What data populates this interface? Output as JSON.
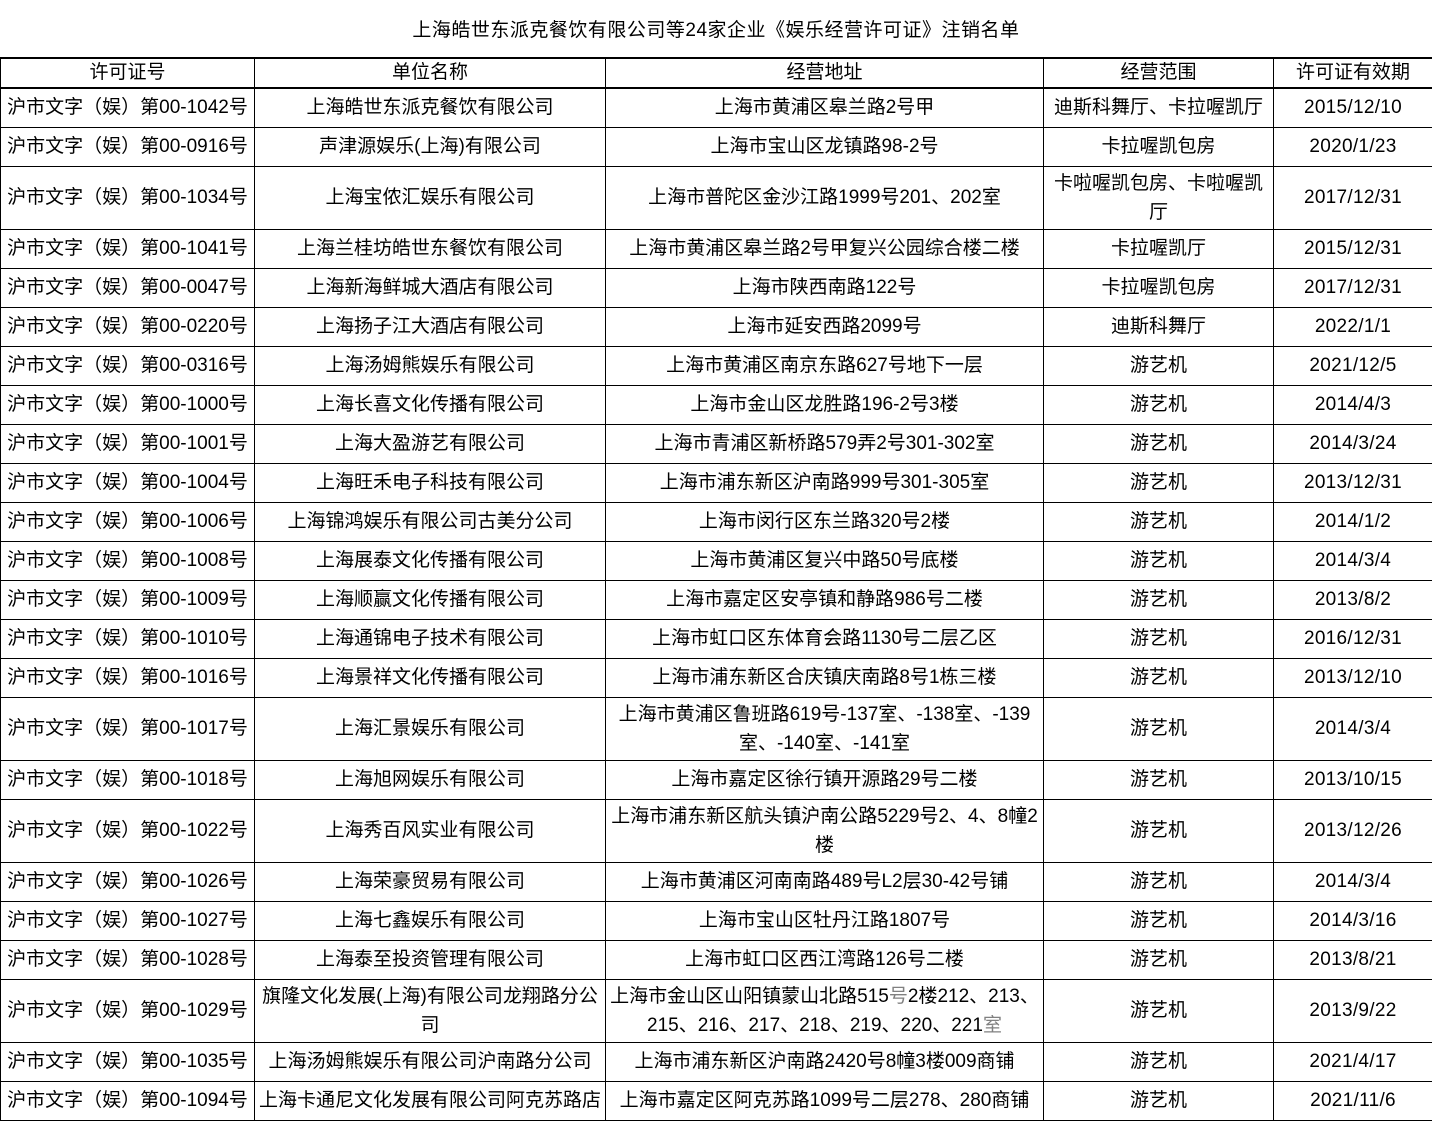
{
  "title": "上海皓世东派克餐饮有限公司等24家企业《娱乐经营许可证》注销名单",
  "colors": {
    "text": "#000000",
    "muted_segment": "#808080",
    "border": "#000000",
    "background": "#ffffff"
  },
  "table": {
    "headers": [
      "许可证号",
      "单位名称",
      "经营地址",
      "经营范围",
      "许可证有效期"
    ],
    "rows": [
      {
        "license": "沪市文字（娱）第00-1042号",
        "company": "上海皓世东派克餐饮有限公司",
        "address": "上海市黄浦区皋兰路2号甲",
        "scope": "迪斯科舞厅、卡拉喔凯厅",
        "expiry": "2015/12/10"
      },
      {
        "license": "沪市文字（娱）第00-0916号",
        "company": "声津源娱乐(上海)有限公司",
        "address": "上海市宝山区龙镇路98-2号",
        "scope": "卡拉喔凯包房",
        "expiry": "2020/1/23"
      },
      {
        "license": "沪市文字（娱）第00-1034号",
        "company": "上海宝侬汇娱乐有限公司",
        "address": "上海市普陀区金沙江路1999号201、202室",
        "scope": "卡啦喔凯包房、卡啦喔凯厅",
        "expiry": "2017/12/31"
      },
      {
        "license": "沪市文字（娱）第00-1041号",
        "company": "上海兰桂坊皓世东餐饮有限公司",
        "address": "上海市黄浦区皋兰路2号甲复兴公园综合楼二楼",
        "scope": "卡拉喔凯厅",
        "expiry": "2015/12/31"
      },
      {
        "license": "沪市文字（娱）第00-0047号",
        "company": "上海新海鲜城大酒店有限公司",
        "address": "上海市陕西南路122号",
        "scope": "卡拉喔凯包房",
        "expiry": "2017/12/31"
      },
      {
        "license": "沪市文字（娱）第00-0220号",
        "company": "上海扬子江大酒店有限公司",
        "address": "上海市延安西路2099号",
        "scope": "迪斯科舞厅",
        "expiry": "2022/1/1"
      },
      {
        "license": "沪市文字（娱）第00-0316号",
        "company": "上海汤姆熊娱乐有限公司",
        "address": "上海市黄浦区南京东路627号地下一层",
        "scope": "游艺机",
        "expiry": "2021/12/5"
      },
      {
        "license": "沪市文字（娱）第00-1000号",
        "company": "上海长喜文化传播有限公司",
        "address": "上海市金山区龙胜路196-2号3楼",
        "scope": "游艺机",
        "expiry": "2014/4/3"
      },
      {
        "license": "沪市文字（娱）第00-1001号",
        "company": "上海大盈游艺有限公司",
        "address": "上海市青浦区新桥路579弄2号301-302室",
        "scope": "游艺机",
        "expiry": "2014/3/24"
      },
      {
        "license": "沪市文字（娱）第00-1004号",
        "company": "上海旺禾电子科技有限公司",
        "address": "上海市浦东新区沪南路999号301-305室",
        "scope": "游艺机",
        "expiry": "2013/12/31"
      },
      {
        "license": "沪市文字（娱）第00-1006号",
        "company": "上海锦鸿娱乐有限公司古美分公司",
        "address": "上海市闵行区东兰路320号2楼",
        "scope": "游艺机",
        "expiry": "2014/1/2"
      },
      {
        "license": "沪市文字（娱）第00-1008号",
        "company": "上海展泰文化传播有限公司",
        "address": "上海市黄浦区复兴中路50号底楼",
        "scope": "游艺机",
        "expiry": "2014/3/4"
      },
      {
        "license": "沪市文字（娱）第00-1009号",
        "company": "上海顺赢文化传播有限公司",
        "address": "上海市嘉定区安亭镇和静路986号二楼",
        "scope": "游艺机",
        "expiry": "2013/8/2"
      },
      {
        "license": "沪市文字（娱）第00-1010号",
        "company": "上海通锦电子技术有限公司",
        "address": "上海市虹口区东体育会路1130号二层乙区",
        "scope": "游艺机",
        "expiry": "2016/12/31"
      },
      {
        "license": "沪市文字（娱）第00-1016号",
        "company": "上海景祥文化传播有限公司",
        "address": "上海市浦东新区合庆镇庆南路8号1栋三楼",
        "scope": "游艺机",
        "expiry": "2013/12/10"
      },
      {
        "license": "沪市文字（娱）第00-1017号",
        "company": "上海汇景娱乐有限公司",
        "address": "上海市黄浦区鲁班路619号-137室、-138室、-139室、-140室、-141室",
        "scope": "游艺机",
        "expiry": "2014/3/4"
      },
      {
        "license": "沪市文字（娱）第00-1018号",
        "company": "上海旭网娱乐有限公司",
        "address": "上海市嘉定区徐行镇开源路29号二楼",
        "scope": "游艺机",
        "expiry": "2013/10/15"
      },
      {
        "license": "沪市文字（娱）第00-1022号",
        "company": "上海秀百风实业有限公司",
        "address": "上海市浦东新区航头镇沪南公路5229号2、4、8幢2楼",
        "scope": "游艺机",
        "expiry": "2013/12/26"
      },
      {
        "license": "沪市文字（娱）第00-1026号",
        "company": "上海荣豪贸易有限公司",
        "address": "上海市黄浦区河南南路489号L2层30-42号铺",
        "scope": "游艺机",
        "expiry": "2014/3/4"
      },
      {
        "license": "沪市文字（娱）第00-1027号",
        "company": "上海七鑫娱乐有限公司",
        "address": "上海市宝山区牡丹江路1807号",
        "scope": "游艺机",
        "expiry": "2014/3/16"
      },
      {
        "license": "沪市文字（娱）第00-1028号",
        "company": "上海泰至投资管理有限公司",
        "address": "上海市虹口区西江湾路126号二楼",
        "scope": "游艺机",
        "expiry": "2013/8/21"
      },
      {
        "license": "沪市文字（娱）第00-1029号",
        "company": "旗隆文化发展(上海)有限公司龙翔路分公司",
        "address": [
          {
            "text": "上海市金山区山阳镇蒙山北路515",
            "color": "#000000"
          },
          {
            "text": "号",
            "color": "#808080"
          },
          {
            "text": "2楼212、213、215、216、217、218、219、220、221",
            "color": "#000000"
          },
          {
            "text": "室",
            "color": "#808080"
          }
        ],
        "scope": "游艺机",
        "expiry": "2013/9/22"
      },
      {
        "license": "沪市文字（娱）第00-1035号",
        "company": "上海汤姆熊娱乐有限公司沪南路分公司",
        "address": "上海市浦东新区沪南路2420号8幢3楼009商铺",
        "scope": "游艺机",
        "expiry": "2021/4/17"
      },
      {
        "license": "沪市文字（娱）第00-1094号",
        "company": "上海卡通尼文化发展有限公司阿克苏路店",
        "address": "上海市嘉定区阿克苏路1099号二层278、280商铺",
        "scope": "游艺机",
        "expiry": "2021/11/6"
      }
    ]
  }
}
